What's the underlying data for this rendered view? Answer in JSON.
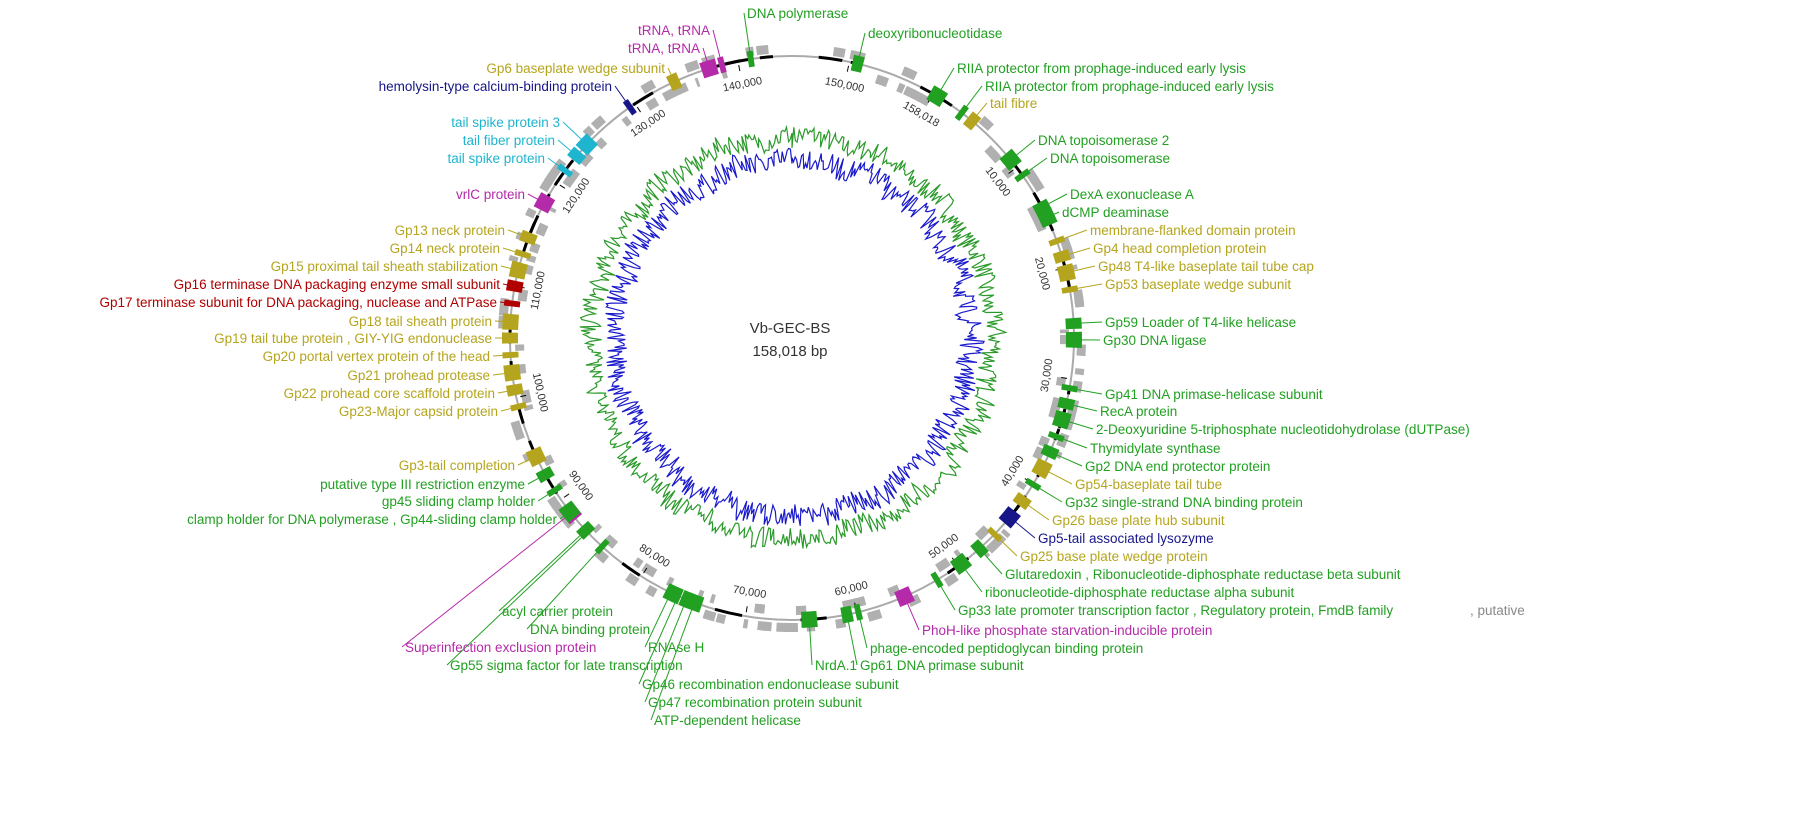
{
  "genome": {
    "name": "Vb-GEC-BS",
    "length": {
      "value": 158018,
      "label": "158,018 bp"
    }
  },
  "ticks": [
    {
      "value": 10000,
      "label": "10,000"
    },
    {
      "value": 20000,
      "label": "20,000"
    },
    {
      "value": 30000,
      "label": "30,000"
    },
    {
      "value": 40000,
      "label": "40,000"
    },
    {
      "value": 50000,
      "label": "50,000"
    },
    {
      "value": 60000,
      "label": "60,000"
    },
    {
      "value": 70000,
      "label": "70,000"
    },
    {
      "value": 80000,
      "label": "80,000"
    },
    {
      "value": 90000,
      "label": "90,000"
    },
    {
      "value": 100000,
      "label": "100,000"
    },
    {
      "value": 110000,
      "label": "110,000"
    },
    {
      "value": 120000,
      "label": "120,000"
    },
    {
      "value": 130000,
      "label": "130,000"
    },
    {
      "value": 140000,
      "label": "140,000"
    },
    {
      "value": 150000,
      "label": "150,000"
    },
    {
      "value": 158018,
      "label": "158,018"
    }
  ],
  "labels": [
    {
      "text": "DNA polymerase",
      "color": "#22a022"
    },
    {
      "text": "deoxyribonucleotidase",
      "color": "#22a022"
    },
    {
      "text": "RIIA protector from prophage-induced early lysis",
      "color": "#22a022"
    },
    {
      "text": "RIIA protector from prophage-induced early lysis",
      "color": "#22a022"
    },
    {
      "text": "tail fibre",
      "color": "#b5a51e"
    },
    {
      "text": "DNA topoisomerase 2",
      "color": "#22a022"
    },
    {
      "text": "DNA topoisomerase",
      "color": "#22a022"
    },
    {
      "text": "DexA exonuclease A",
      "color": "#22a022"
    },
    {
      "text": "dCMP deaminase",
      "color": "#22a022"
    },
    {
      "text": "membrane-flanked domain protein",
      "color": "#b5a51e"
    },
    {
      "text": "Gp4 head completion protein",
      "color": "#b5a51e"
    },
    {
      "text": "Gp48 T4-like baseplate tail tube cap",
      "color": "#b5a51e"
    },
    {
      "text": "Gp53 baseplate wedge subunit",
      "color": "#b5a51e"
    },
    {
      "text": "Gp59 Loader of T4-like helicase",
      "color": "#22a022"
    },
    {
      "text": "Gp30 DNA ligase",
      "color": "#22a022"
    },
    {
      "text": "Gp41 DNA primase-helicase subunit",
      "color": "#22a022"
    },
    {
      "text": "RecA protein",
      "color": "#22a022"
    },
    {
      "text": "2-Deoxyuridine 5-triphosphate nucleotidohydrolase (dUTPase)",
      "color": "#22a022"
    },
    {
      "text": "Thymidylate synthase",
      "color": "#22a022"
    },
    {
      "text": "Gp2 DNA end protector protein",
      "color": "#22a022"
    },
    {
      "text": "Gp54-baseplate tail tube",
      "color": "#b5a51e"
    },
    {
      "text": "Gp32 single-strand DNA binding protein",
      "color": "#22a022"
    },
    {
      "text": "Gp26 base plate hub subunit",
      "color": "#b5a51e"
    },
    {
      "text": "Gp5-tail associated lysozyme",
      "color": "#16168a"
    },
    {
      "text": "Gp25 base plate wedge protein",
      "color": "#b5a51e"
    },
    {
      "text": "Glutaredoxin , Ribonucleotide-diphosphate reductase beta subunit",
      "color": "#22a022"
    },
    {
      "text": "ribonucleotide-diphosphate reductase alpha subunit",
      "color": "#22a022"
    },
    {
      "text": "Gp33 late promoter transcription factor , Regulatory protein, FmdB family",
      "color": "#22a022"
    },
    {
      "text": ", putative",
      "color": "#888888"
    },
    {
      "text": "PhoH-like phosphate starvation-inducible protein",
      "color": "#b52aa8"
    },
    {
      "text": "phage-encoded peptidoglycan binding protein",
      "color": "#22a022"
    },
    {
      "text": "Gp61 DNA primase subunit",
      "color": "#22a022"
    },
    {
      "text": "NrdA.1",
      "color": "#22a022"
    },
    {
      "text": "Gp46 recombination endonuclease subunit",
      "color": "#22a022"
    },
    {
      "text": "Gp47 recombination protein subunit",
      "color": "#22a022"
    },
    {
      "text": "ATP-dependent helicase",
      "color": "#22a022"
    },
    {
      "text": "Gp55 sigma factor for late transcription",
      "color": "#22a022"
    },
    {
      "text": "RNAse H",
      "color": "#22a022"
    },
    {
      "text": "Superinfection exclusion protein",
      "color": "#b52aa8"
    },
    {
      "text": "DNA binding protein",
      "color": "#22a022"
    },
    {
      "text": "acyl carrier protein",
      "color": "#22a022"
    },
    {
      "text": "clamp holder for DNA polymerase , Gp44-sliding clamp holder",
      "color": "#22a022"
    },
    {
      "text": "gp45 sliding clamp holder",
      "color": "#22a022"
    },
    {
      "text": "putative type III restriction enzyme",
      "color": "#22a022"
    },
    {
      "text": "Gp3-tail completion",
      "color": "#b5a51e"
    },
    {
      "text": "Gp23-Major capsid protein",
      "color": "#b5a51e"
    },
    {
      "text": "Gp22 prohead core scaffold protein",
      "color": "#b5a51e"
    },
    {
      "text": "Gp21 prohead protease",
      "color": "#b5a51e"
    },
    {
      "text": "Gp20 portal vertex protein of the head",
      "color": "#b5a51e"
    },
    {
      "text": "Gp19 tail tube protein , GIY-YIG endonuclease",
      "color": "#b5a51e"
    },
    {
      "text": "Gp18 tail sheath protein",
      "color": "#b5a51e"
    },
    {
      "text": "Gp17 terminase subunit for DNA packaging, nuclease and ATPase",
      "color": "#b00000"
    },
    {
      "text": "Gp16 terminase DNA packaging enzyme small subunit",
      "color": "#b00000"
    },
    {
      "text": "Gp15 proximal tail sheath stabilization",
      "color": "#b5a51e"
    },
    {
      "text": "Gp14 neck protein",
      "color": "#b5a51e"
    },
    {
      "text": "Gp13 neck protein",
      "color": "#b5a51e"
    },
    {
      "text": "vrlC protein",
      "color": "#b52aa8"
    },
    {
      "text": "tail spike protein",
      "color": "#1fb5cf"
    },
    {
      "text": "tail fiber protein",
      "color": "#1fb5cf"
    },
    {
      "text": "tail spike protein 3",
      "color": "#1fb5cf"
    },
    {
      "text": "hemolysin-type calcium-binding protein",
      "color": "#16168a"
    },
    {
      "text": "Gp6 baseplate wedge subunit",
      "color": "#b5a51e"
    },
    {
      "text": "tRNA, tRNA",
      "color": "#b52aa8"
    },
    {
      "text": "tRNA, tRNA",
      "color": "#b52aa8"
    }
  ]
}
